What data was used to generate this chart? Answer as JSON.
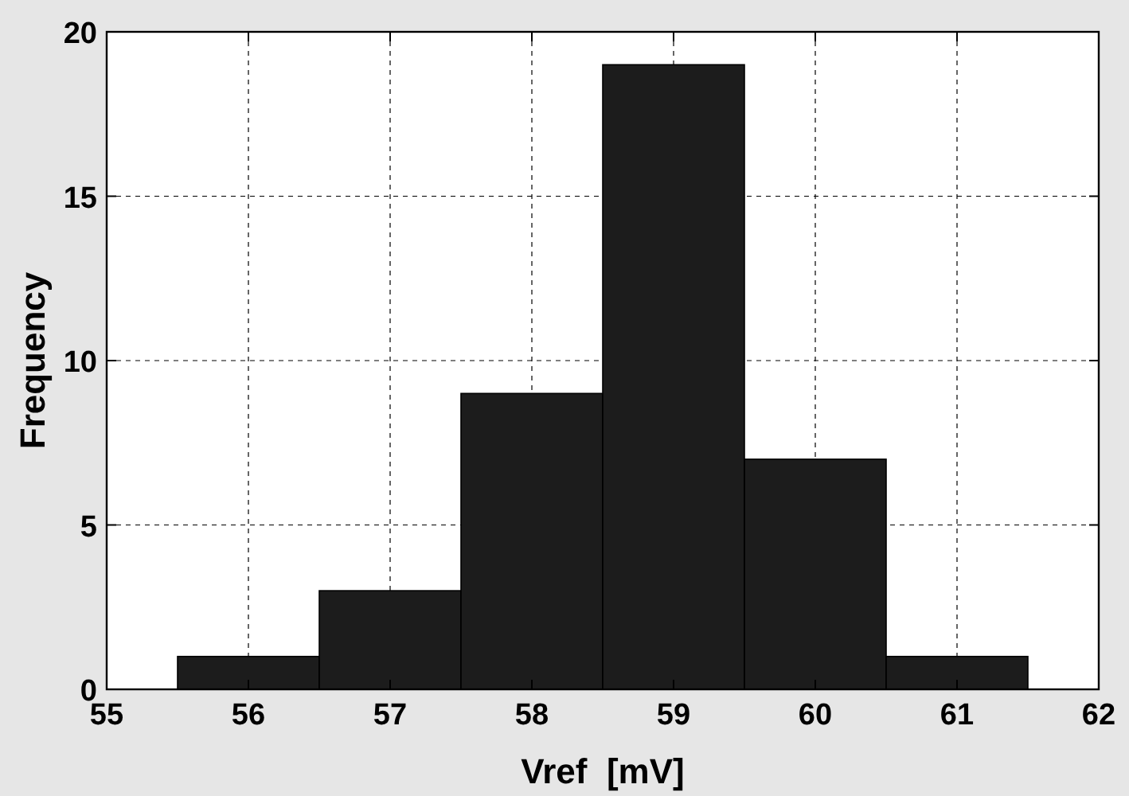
{
  "chart_data": {
    "type": "histogram",
    "xlabel": "Vref  [mV]",
    "ylabel": "Frequency",
    "bins": [
      55.5,
      56.5,
      57.5,
      58.5,
      59.5,
      60.5,
      61.5
    ],
    "values": [
      1,
      3,
      9,
      19,
      7,
      1
    ],
    "color": "#1c1c1c",
    "xlim": [
      55,
      62
    ],
    "xticks": [
      55,
      56,
      57,
      58,
      59,
      60,
      61,
      62
    ],
    "ylim": [
      0,
      20
    ],
    "yticks": [
      0,
      5,
      10,
      15,
      20
    ],
    "grid": true
  }
}
